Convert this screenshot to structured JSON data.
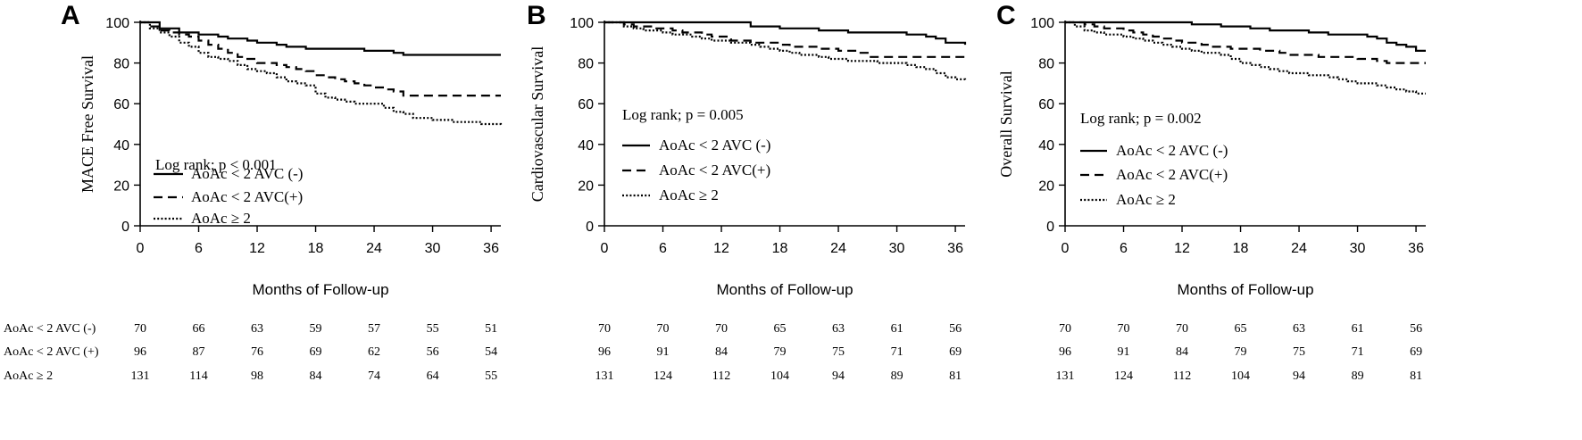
{
  "chart_data": [
    {
      "type": "line",
      "panel_label": "A",
      "ylabel": "MACE Free Survival",
      "xlabel": "Months of Follow-up",
      "x_ticks": [
        "0",
        "6",
        "12",
        "18",
        "24",
        "30",
        "36"
      ],
      "y_ticks": [
        "0",
        "20",
        "40",
        "60",
        "80",
        "100"
      ],
      "xlim": [
        0,
        37
      ],
      "ylim": [
        0,
        100
      ],
      "annotation": "Log rank; p < 0.001",
      "series": [
        {
          "name": "AoAc < 2 AVC (-)",
          "style": "solid",
          "x": [
            0,
            2,
            4,
            6,
            8,
            9,
            11,
            12,
            14,
            15,
            17,
            20,
            23,
            24,
            26,
            27,
            37
          ],
          "y": [
            100,
            97,
            95,
            94,
            93,
            92,
            91,
            90,
            89,
            88,
            87,
            87,
            86,
            86,
            85,
            84,
            84
          ]
        },
        {
          "name": "AoAc < 2 AVC(+)",
          "style": "dashed",
          "x": [
            0,
            1,
            2,
            3,
            4,
            5,
            6,
            7,
            8,
            9,
            10,
            11,
            12,
            13,
            14,
            15,
            16,
            17,
            18,
            19,
            20,
            21,
            22,
            23,
            24,
            25,
            26,
            27,
            28,
            37
          ],
          "y": [
            100,
            98,
            96,
            95,
            94,
            93,
            91,
            89,
            87,
            85,
            83,
            82,
            80,
            80,
            79,
            78,
            77,
            76,
            74,
            73,
            72,
            71,
            70,
            69,
            68,
            67,
            66,
            64,
            64,
            64
          ]
        },
        {
          "name": "AoAc ≥ 2",
          "style": "dotted",
          "x": [
            0,
            1,
            2,
            3,
            4,
            5,
            6,
            7,
            8,
            9,
            10,
            11,
            12,
            13,
            14,
            15,
            16,
            17,
            18,
            19,
            20,
            21,
            22,
            23,
            24,
            25,
            26,
            27,
            28,
            29,
            30,
            31,
            32,
            33,
            34,
            35,
            36,
            37
          ],
          "y": [
            100,
            97,
            95,
            93,
            90,
            88,
            85,
            83,
            82,
            81,
            79,
            77,
            76,
            75,
            73,
            71,
            70,
            69,
            65,
            63,
            62,
            61,
            60,
            60,
            60,
            58,
            56,
            55,
            53,
            53,
            52,
            52,
            51,
            51,
            51,
            50,
            50,
            49
          ]
        }
      ],
      "risk_table": [
        {
          "label": "AoAc < 2 AVC (-)",
          "values": [
            "70",
            "66",
            "63",
            "59",
            "57",
            "55",
            "51"
          ]
        },
        {
          "label": "AoAc < 2 AVC (+)",
          "values": [
            "96",
            "87",
            "76",
            "69",
            "62",
            "56",
            "54"
          ]
        },
        {
          "label": "AoAc ≥ 2",
          "values": [
            "131",
            "114",
            "98",
            "84",
            "74",
            "64",
            "55"
          ]
        }
      ]
    },
    {
      "type": "line",
      "panel_label": "B",
      "ylabel": "Cardiovascular Survival",
      "xlabel": "Months of Follow-up",
      "x_ticks": [
        "0",
        "6",
        "12",
        "18",
        "24",
        "30",
        "36"
      ],
      "y_ticks": [
        "0",
        "20",
        "40",
        "60",
        "80",
        "100"
      ],
      "xlim": [
        0,
        37
      ],
      "ylim": [
        0,
        100
      ],
      "annotation": "Log rank; p = 0.005",
      "series": [
        {
          "name": "AoAc < 2 AVC (-)",
          "style": "solid",
          "x": [
            0,
            13,
            15,
            18,
            22,
            25,
            28,
            31,
            33,
            34,
            35,
            37
          ],
          "y": [
            100,
            100,
            98,
            97,
            96,
            95,
            95,
            94,
            93,
            92,
            90,
            89
          ]
        },
        {
          "name": "AoAc < 2 AVC(+)",
          "style": "dashed",
          "x": [
            0,
            2,
            3,
            5,
            7,
            8,
            10,
            11,
            13,
            15,
            17,
            18,
            19,
            20,
            22,
            24,
            26,
            27,
            37
          ],
          "y": [
            100,
            99,
            98,
            97,
            96,
            95,
            94,
            93,
            91,
            90,
            90,
            89,
            88,
            88,
            87,
            86,
            85,
            83,
            83
          ]
        },
        {
          "name": "AoAc ≥ 2",
          "style": "dotted",
          "x": [
            0,
            2,
            3,
            4,
            5,
            6,
            7,
            8,
            9,
            10,
            11,
            12,
            13,
            14,
            15,
            16,
            17,
            18,
            19,
            20,
            21,
            22,
            23,
            24,
            25,
            26,
            27,
            28,
            29,
            30,
            31,
            32,
            33,
            34,
            35,
            36,
            37
          ],
          "y": [
            100,
            98,
            97,
            96,
            96,
            95,
            94,
            94,
            93,
            92,
            91,
            91,
            90,
            90,
            89,
            88,
            87,
            86,
            85,
            84,
            84,
            83,
            82,
            82,
            81,
            81,
            81,
            80,
            80,
            80,
            79,
            78,
            77,
            75,
            73,
            72,
            71
          ]
        }
      ],
      "risk_table": [
        {
          "label": "",
          "values": [
            "70",
            "70",
            "70",
            "65",
            "63",
            "61",
            "56"
          ]
        },
        {
          "label": "",
          "values": [
            "96",
            "91",
            "84",
            "79",
            "75",
            "71",
            "69"
          ]
        },
        {
          "label": "",
          "values": [
            "131",
            "124",
            "112",
            "104",
            "94",
            "89",
            "81"
          ]
        }
      ]
    },
    {
      "type": "line",
      "panel_label": "C",
      "ylabel": "Overall Survival",
      "xlabel": "Months of Follow-up",
      "x_ticks": [
        "0",
        "6",
        "12",
        "18",
        "24",
        "30",
        "36"
      ],
      "y_ticks": [
        "0",
        "20",
        "40",
        "60",
        "80",
        "100"
      ],
      "xlim": [
        0,
        37
      ],
      "ylim": [
        0,
        100
      ],
      "annotation": "Log rank; p = 0.002",
      "series": [
        {
          "name": "AoAc < 2 AVC (-)",
          "style": "solid",
          "x": [
            0,
            11,
            13,
            16,
            19,
            21,
            23,
            25,
            27,
            29,
            31,
            32,
            33,
            34,
            35,
            36,
            37
          ],
          "y": [
            100,
            100,
            99,
            98,
            97,
            96,
            96,
            95,
            94,
            94,
            93,
            92,
            90,
            89,
            88,
            86,
            86
          ]
        },
        {
          "name": "AoAc < 2 AVC(+)",
          "style": "dashed",
          "x": [
            0,
            2,
            3,
            4,
            6,
            7,
            8,
            9,
            10,
            11,
            12,
            13,
            14,
            15,
            16,
            17,
            18,
            20,
            22,
            23,
            24,
            26,
            28,
            30,
            31,
            32,
            33,
            34,
            35,
            37
          ],
          "y": [
            100,
            99,
            98,
            97,
            96,
            95,
            94,
            93,
            92,
            91,
            90,
            90,
            89,
            88,
            88,
            87,
            87,
            86,
            85,
            84,
            84,
            83,
            83,
            82,
            82,
            81,
            80,
            80,
            80,
            80
          ]
        },
        {
          "name": "AoAc ≥ 2",
          "style": "dotted",
          "x": [
            0,
            1,
            2,
            3,
            4,
            5,
            6,
            7,
            8,
            9,
            10,
            11,
            12,
            13,
            14,
            15,
            16,
            17,
            18,
            19,
            20,
            21,
            22,
            23,
            24,
            25,
            26,
            27,
            28,
            29,
            30,
            31,
            32,
            33,
            34,
            35,
            36,
            37
          ],
          "y": [
            100,
            98,
            96,
            95,
            94,
            94,
            93,
            92,
            91,
            90,
            89,
            88,
            87,
            86,
            85,
            85,
            84,
            82,
            80,
            79,
            78,
            77,
            76,
            75,
            75,
            74,
            74,
            73,
            72,
            71,
            70,
            70,
            69,
            68,
            67,
            66,
            65,
            65
          ]
        }
      ],
      "risk_table": [
        {
          "label": "",
          "values": [
            "70",
            "70",
            "70",
            "65",
            "63",
            "61",
            "56"
          ]
        },
        {
          "label": "",
          "values": [
            "96",
            "91",
            "84",
            "79",
            "75",
            "71",
            "69"
          ]
        },
        {
          "label": "",
          "values": [
            "131",
            "124",
            "112",
            "104",
            "94",
            "89",
            "81"
          ]
        }
      ]
    }
  ]
}
